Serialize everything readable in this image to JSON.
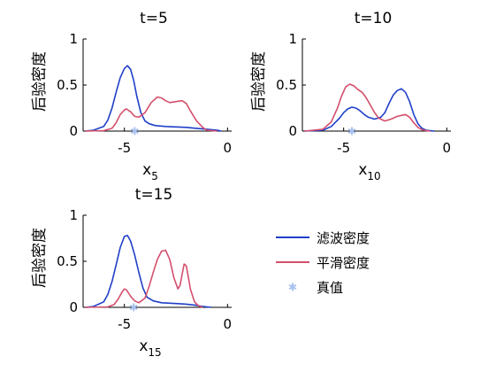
{
  "legend": {
    "filter_label": "滤波密度",
    "smooth_label": "平滑密度",
    "truth_label": "真值"
  },
  "colors": {
    "filter": "#1f3fc8",
    "smooth": "#d44f6d",
    "truth": "#a9c3ee"
  },
  "chart_data": [
    {
      "type": "line",
      "title": "t=5",
      "ylabel": "后验密度",
      "xlabel_main": "x",
      "xlabel_sub": "5",
      "xlim": [
        -7,
        0.2
      ],
      "ylim": [
        0,
        1
      ],
      "xticks": [
        -5,
        0
      ],
      "xtick_labels": [
        "-5",
        "0"
      ],
      "yticks": [
        0,
        0.5,
        1
      ],
      "ytick_labels": [
        "0",
        "0.5",
        "1"
      ],
      "truth_x": -4.5,
      "series": [
        {
          "name": "滤波密度",
          "key": "filter",
          "x": [
            -6.9,
            -6.5,
            -6.0,
            -5.8,
            -5.6,
            -5.4,
            -5.2,
            -5.0,
            -4.85,
            -4.7,
            -4.55,
            -4.4,
            -4.2,
            -4.0,
            -3.8,
            -3.5,
            -3.0,
            -2.5,
            -2.0,
            -1.5,
            -1.0,
            -0.5,
            -0.3
          ],
          "y": [
            0,
            0.01,
            0.05,
            0.12,
            0.25,
            0.42,
            0.58,
            0.68,
            0.71,
            0.67,
            0.55,
            0.38,
            0.2,
            0.11,
            0.08,
            0.06,
            0.05,
            0.045,
            0.04,
            0.03,
            0.02,
            0.01,
            0
          ]
        },
        {
          "name": "平滑密度",
          "key": "smooth",
          "x": [
            -6.9,
            -6.0,
            -5.6,
            -5.4,
            -5.2,
            -5.0,
            -4.9,
            -4.7,
            -4.5,
            -4.3,
            -4.0,
            -3.7,
            -3.4,
            -3.2,
            -3.0,
            -2.8,
            -2.5,
            -2.2,
            -2.0,
            -1.8,
            -1.5,
            -1.2,
            -1.0,
            -0.5
          ],
          "y": [
            0,
            0.005,
            0.03,
            0.09,
            0.18,
            0.23,
            0.24,
            0.21,
            0.16,
            0.15,
            0.2,
            0.31,
            0.37,
            0.36,
            0.33,
            0.31,
            0.32,
            0.33,
            0.3,
            0.22,
            0.11,
            0.04,
            0.01,
            0
          ]
        }
      ]
    },
    {
      "type": "line",
      "title": "t=10",
      "ylabel": "后验密度",
      "xlabel_main": "x",
      "xlabel_sub": "10",
      "xlim": [
        -7,
        0.2
      ],
      "ylim": [
        0,
        1
      ],
      "xticks": [
        -5,
        0
      ],
      "xtick_labels": [
        "-5",
        "0"
      ],
      "yticks": [
        0,
        0.5,
        1
      ],
      "ytick_labels": [
        "0",
        "0.5",
        "1"
      ],
      "truth_x": -4.6,
      "series": [
        {
          "name": "滤波密度",
          "key": "filter",
          "x": [
            -6.9,
            -6.0,
            -5.6,
            -5.2,
            -5.0,
            -4.8,
            -4.6,
            -4.4,
            -4.2,
            -4.0,
            -3.8,
            -3.5,
            -3.2,
            -3.0,
            -2.8,
            -2.6,
            -2.4,
            -2.2,
            -2.0,
            -1.8,
            -1.6,
            -1.4,
            -1.2,
            -1.0,
            -0.6
          ],
          "y": [
            0,
            0.01,
            0.05,
            0.14,
            0.2,
            0.24,
            0.26,
            0.25,
            0.22,
            0.18,
            0.15,
            0.13,
            0.15,
            0.2,
            0.3,
            0.39,
            0.44,
            0.46,
            0.42,
            0.32,
            0.18,
            0.08,
            0.03,
            0.01,
            0
          ]
        },
        {
          "name": "平滑密度",
          "key": "smooth",
          "x": [
            -6.9,
            -6.0,
            -5.6,
            -5.3,
            -5.1,
            -4.9,
            -4.7,
            -4.5,
            -4.3,
            -4.1,
            -3.9,
            -3.7,
            -3.5,
            -3.3,
            -3.0,
            -2.7,
            -2.4,
            -2.2,
            -2.0,
            -1.8,
            -1.6,
            -1.4,
            -1.2,
            -1.0,
            -0.8
          ],
          "y": [
            0,
            0.02,
            0.1,
            0.25,
            0.38,
            0.48,
            0.51,
            0.49,
            0.45,
            0.42,
            0.36,
            0.28,
            0.2,
            0.14,
            0.11,
            0.13,
            0.16,
            0.17,
            0.18,
            0.15,
            0.09,
            0.04,
            0.015,
            0.005,
            0
          ]
        }
      ]
    },
    {
      "type": "line",
      "title": "t=15",
      "ylabel": "后验密度",
      "xlabel_main": "x",
      "xlabel_sub": "15",
      "xlim": [
        -7,
        0.2
      ],
      "ylim": [
        0,
        1
      ],
      "xticks": [
        -5,
        0
      ],
      "xtick_labels": [
        "-5",
        "0"
      ],
      "yticks": [
        0,
        0.5,
        1
      ],
      "ytick_labels": [
        "0",
        "0.5",
        "1"
      ],
      "truth_x": -4.55,
      "series": [
        {
          "name": "滤波密度",
          "key": "filter",
          "x": [
            -6.9,
            -6.5,
            -6.0,
            -5.8,
            -5.6,
            -5.4,
            -5.2,
            -5.0,
            -4.85,
            -4.7,
            -4.5,
            -4.3,
            -4.1,
            -3.9,
            -3.6,
            -3.2,
            -2.8,
            -2.4,
            -2.0,
            -1.6,
            -1.2,
            -0.8
          ],
          "y": [
            0,
            0.01,
            0.06,
            0.14,
            0.28,
            0.46,
            0.65,
            0.77,
            0.78,
            0.72,
            0.57,
            0.38,
            0.21,
            0.11,
            0.07,
            0.05,
            0.045,
            0.04,
            0.035,
            0.025,
            0.01,
            0
          ]
        },
        {
          "name": "平滑密度",
          "key": "smooth",
          "x": [
            -6.9,
            -5.8,
            -5.5,
            -5.3,
            -5.1,
            -5.0,
            -4.9,
            -4.7,
            -4.5,
            -4.3,
            -4.0,
            -3.8,
            -3.6,
            -3.4,
            -3.2,
            -3.0,
            -2.8,
            -2.6,
            -2.4,
            -2.3,
            -2.2,
            -2.1,
            -2.0,
            -1.9,
            -1.8,
            -1.6,
            -1.4,
            -1.2
          ],
          "y": [
            0,
            0.005,
            0.03,
            0.09,
            0.17,
            0.2,
            0.19,
            0.12,
            0.07,
            0.05,
            0.1,
            0.23,
            0.38,
            0.52,
            0.61,
            0.62,
            0.52,
            0.32,
            0.2,
            0.24,
            0.36,
            0.47,
            0.45,
            0.33,
            0.2,
            0.06,
            0.015,
            0
          ]
        }
      ]
    }
  ]
}
